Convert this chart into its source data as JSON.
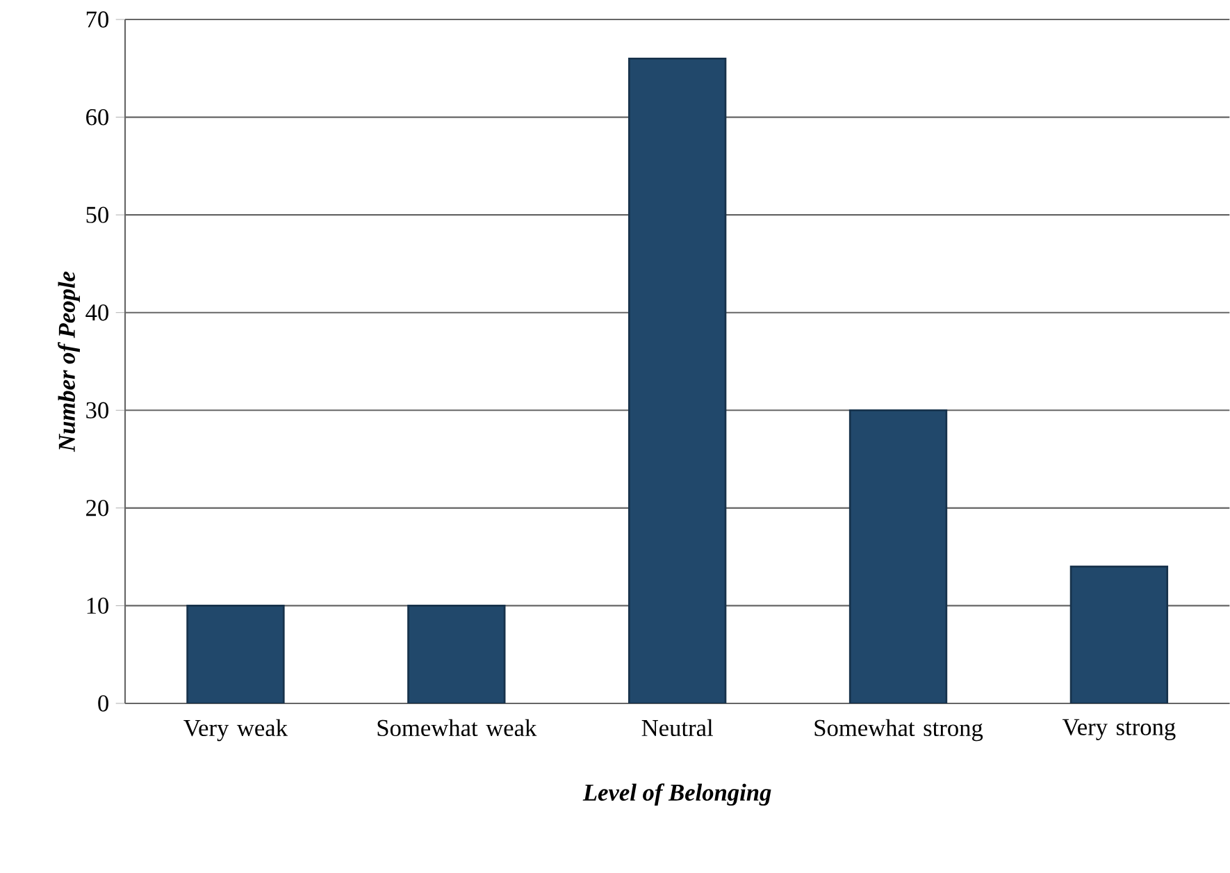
{
  "chart_data": {
    "type": "bar",
    "xlabel": "Level of Belonging",
    "ylabel": "Number of People",
    "categories": [
      "Very weak",
      "Somewhat weak",
      "Neutral",
      "Somewhat strong",
      "Very strong"
    ],
    "values": [
      10,
      10,
      66,
      30,
      14
    ],
    "color": "#21486b",
    "ylim": [
      0,
      70
    ],
    "yticks": [
      0,
      10,
      20,
      30,
      40,
      50,
      60,
      70
    ],
    "grid": "y"
  }
}
